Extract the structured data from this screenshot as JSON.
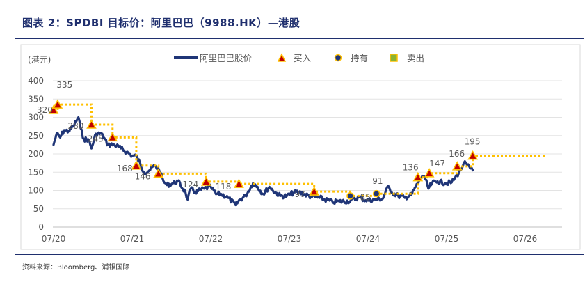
{
  "title": "图表 2：SPDBI 目标价：阿里巴巴（9988.HK）—港股",
  "source": "资料来源：Bloomberg、浦银国际",
  "chart_data": {
    "type": "line",
    "unit_label": "(港元)",
    "y_ticks": [
      0,
      50,
      100,
      150,
      200,
      250,
      300,
      350,
      400
    ],
    "ylim": [
      0,
      400
    ],
    "x_ticks": [
      "07/20",
      "07/21",
      "07/22",
      "07/23",
      "07/24",
      "07/25",
      "07/26"
    ],
    "xlim": [
      "2020-07",
      "2026-10"
    ],
    "grid": "horizontal",
    "legend": {
      "position": "top",
      "price": "阿里巴巴股价",
      "buy": "买入",
      "hold": "持有",
      "sell": "卖出"
    },
    "colors": {
      "price": "#1f3577",
      "target": "#ffc000",
      "buy": "#c00000",
      "hold": "#1f3577",
      "sell": "#8bb332"
    },
    "price_series": [
      [
        "2020-07-01",
        225
      ],
      [
        "2020-07-15",
        255
      ],
      [
        "2020-08-01",
        245
      ],
      [
        "2020-08-20",
        265
      ],
      [
        "2020-09-10",
        262
      ],
      [
        "2020-10-01",
        275
      ],
      [
        "2020-10-25",
        300
      ],
      [
        "2020-11-05",
        270
      ],
      [
        "2020-11-20",
        240
      ],
      [
        "2020-12-10",
        240
      ],
      [
        "2020-12-25",
        215
      ],
      [
        "2021-01-15",
        255
      ],
      [
        "2021-02-10",
        255
      ],
      [
        "2021-03-10",
        225
      ],
      [
        "2021-04-10",
        225
      ],
      [
        "2021-05-10",
        215
      ],
      [
        "2021-06-05",
        205
      ],
      [
        "2021-07-01",
        195
      ],
      [
        "2021-07-20",
        195
      ],
      [
        "2021-08-10",
        170
      ],
      [
        "2021-08-25",
        150
      ],
      [
        "2021-09-20",
        155
      ],
      [
        "2021-10-15",
        168
      ],
      [
        "2021-11-05",
        155
      ],
      [
        "2021-11-25",
        125
      ],
      [
        "2021-12-10",
        115
      ],
      [
        "2022-01-10",
        120
      ],
      [
        "2022-02-01",
        125
      ],
      [
        "2022-03-05",
        95
      ],
      [
        "2022-03-15",
        75
      ],
      [
        "2022-03-30",
        105
      ],
      [
        "2022-04-20",
        95
      ],
      [
        "2022-06-01",
        105
      ],
      [
        "2022-07-01",
        110
      ],
      [
        "2022-07-25",
        90
      ],
      [
        "2022-08-20",
        90
      ],
      [
        "2022-09-20",
        80
      ],
      [
        "2022-10-25",
        60
      ],
      [
        "2022-11-15",
        75
      ],
      [
        "2022-12-10",
        85
      ],
      [
        "2023-01-15",
        120
      ],
      [
        "2023-02-05",
        110
      ],
      [
        "2023-03-01",
        90
      ],
      [
        "2023-03-30",
        110
      ],
      [
        "2023-04-15",
        100
      ],
      [
        "2023-05-20",
        85
      ],
      [
        "2023-06-20",
        85
      ],
      [
        "2023-07-25",
        95
      ],
      [
        "2023-08-15",
        95
      ],
      [
        "2023-10-10",
        83
      ],
      [
        "2023-11-20",
        80
      ],
      [
        "2024-01-20",
        68
      ],
      [
        "2024-02-20",
        70
      ],
      [
        "2024-04-10",
        71
      ],
      [
        "2024-05-20",
        82
      ],
      [
        "2024-06-20",
        73
      ],
      [
        "2024-08-10",
        75
      ],
      [
        "2024-09-10",
        78
      ],
      [
        "2024-09-30",
        110
      ],
      [
        "2024-10-20",
        95
      ],
      [
        "2024-11-20",
        85
      ],
      [
        "2024-12-20",
        80
      ],
      [
        "2025-01-20",
        88
      ],
      [
        "2025-02-10",
        110
      ],
      [
        "2025-03-10",
        140
      ],
      [
        "2025-03-25",
        130
      ],
      [
        "2025-04-08",
        105
      ],
      [
        "2025-04-25",
        120
      ],
      [
        "2025-05-20",
        125
      ],
      [
        "2025-06-25",
        120
      ],
      [
        "2025-07-25",
        122
      ],
      [
        "2025-08-10",
        135
      ],
      [
        "2025-09-05",
        155
      ],
      [
        "2025-09-20",
        175
      ],
      [
        "2025-10-05",
        170
      ],
      [
        "2025-10-20",
        160
      ],
      [
        "2025-11-01",
        155
      ]
    ],
    "target_series": [
      [
        "2020-07-01",
        320
      ],
      [
        "2020-07-20",
        320
      ],
      [
        "2020-07-20",
        335
      ],
      [
        "2020-12-25",
        335
      ],
      [
        "2020-12-25",
        280
      ],
      [
        "2021-04-01",
        280
      ],
      [
        "2021-04-01",
        245
      ],
      [
        "2021-07-20",
        245
      ],
      [
        "2021-07-20",
        168
      ],
      [
        "2021-11-01",
        168
      ],
      [
        "2021-11-01",
        146
      ],
      [
        "2022-06-10",
        146
      ],
      [
        "2022-06-10",
        124
      ],
      [
        "2022-11-10",
        124
      ],
      [
        "2022-11-10",
        118
      ],
      [
        "2023-10-25",
        118
      ],
      [
        "2023-10-25",
        97
      ],
      [
        "2024-04-10",
        97
      ],
      [
        "2024-04-10",
        85
      ],
      [
        "2024-08-10",
        85
      ],
      [
        "2024-08-10",
        91
      ],
      [
        "2025-02-20",
        91
      ],
      [
        "2025-02-20",
        136
      ],
      [
        "2025-04-12",
        136
      ],
      [
        "2025-04-12",
        147
      ],
      [
        "2025-08-20",
        147
      ],
      [
        "2025-08-20",
        166
      ],
      [
        "2025-11-01",
        166
      ],
      [
        "2025-11-01",
        195
      ],
      [
        "2026-10-01",
        195
      ]
    ],
    "buy_points": [
      {
        "x": "2020-07-01",
        "y": 320,
        "label": "320"
      },
      {
        "x": "2020-07-20",
        "y": 335,
        "label": "335"
      },
      {
        "x": "2020-12-25",
        "y": 280,
        "label": "280"
      },
      {
        "x": "2021-04-01",
        "y": 245,
        "label": "245"
      },
      {
        "x": "2021-07-20",
        "y": 168,
        "label": "168"
      },
      {
        "x": "2021-11-01",
        "y": 146,
        "label": "146"
      },
      {
        "x": "2022-06-10",
        "y": 124,
        "label": "124"
      },
      {
        "x": "2022-11-10",
        "y": 118,
        "label": "118"
      },
      {
        "x": "2023-10-25",
        "y": 97,
        "label": "97"
      },
      {
        "x": "2025-02-20",
        "y": 136,
        "label": "136"
      },
      {
        "x": "2025-04-12",
        "y": 147,
        "label": "147"
      },
      {
        "x": "2025-08-20",
        "y": 166,
        "label": "166"
      },
      {
        "x": "2025-11-01",
        "y": 195,
        "label": "195"
      }
    ],
    "hold_points": [
      {
        "x": "2024-04-10",
        "y": 85,
        "label": "85"
      },
      {
        "x": "2024-08-10",
        "y": 91,
        "label": "91"
      }
    ]
  }
}
